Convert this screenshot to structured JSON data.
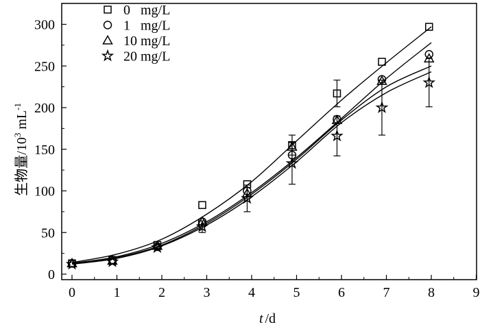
{
  "chart_data": {
    "type": "scatter",
    "xlabel": {
      "var": "t",
      "unit": "/d"
    },
    "ylabel": {
      "prefix": "生物量/10",
      "sup1": "3",
      "mid": " mL",
      "sup2": "-1"
    },
    "xlim": [
      0,
      9
    ],
    "ylim": [
      0,
      325
    ],
    "xticks": [
      "0",
      "1",
      "2",
      "3",
      "4",
      "5",
      "6",
      "7",
      "8",
      "9"
    ],
    "yticks": [
      "0",
      "50",
      "100",
      "150",
      "200",
      "250",
      "300"
    ],
    "grid": false,
    "legend_position": "top-left",
    "series": [
      {
        "name": "0   mg/L",
        "marker": "square",
        "x": [
          0,
          0.9,
          1.9,
          2.9,
          3.9,
          4.9,
          5.9,
          6.9,
          7.95
        ],
        "y": [
          13,
          17,
          35,
          83,
          108,
          155,
          217,
          255,
          297
        ],
        "err": [
          0,
          0,
          0,
          0,
          0,
          12,
          16,
          0,
          0
        ],
        "fit": [
          14,
          24,
          42,
          72,
          111,
          160,
          209,
          254,
          297
        ]
      },
      {
        "name": "1   mg/L",
        "marker": "circle",
        "x": [
          0,
          0.9,
          1.9,
          2.9,
          3.9,
          4.9,
          5.9,
          6.9,
          7.95
        ],
        "y": [
          13,
          17,
          33,
          63,
          100,
          143,
          186,
          234,
          264
        ],
        "err": [
          0,
          0,
          0,
          0,
          0,
          0,
          0,
          0,
          0
        ],
        "fit": [
          13,
          21,
          37,
          63,
          98,
          140,
          187,
          235,
          278
        ]
      },
      {
        "name": "10 mg/L",
        "marker": "triangle",
        "x": [
          0,
          0.9,
          1.9,
          2.9,
          3.9,
          4.9,
          5.9,
          6.9,
          7.95
        ],
        "y": [
          13,
          16,
          34,
          63,
          97,
          153,
          185,
          232,
          259
        ],
        "err": [
          0,
          0,
          0,
          0,
          0,
          0,
          0,
          0,
          0
        ],
        "fit": [
          13,
          20,
          35,
          61,
          96,
          138,
          185,
          225,
          250
        ]
      },
      {
        "name": "20 mg/L",
        "marker": "star",
        "x": [
          0,
          0.9,
          1.9,
          2.9,
          3.9,
          4.9,
          5.9,
          6.9,
          7.95
        ],
        "y": [
          12,
          15,
          32,
          57,
          91,
          133,
          166,
          200,
          230
        ],
        "err": [
          0,
          0,
          0,
          7,
          16,
          25,
          24,
          33,
          29
        ],
        "fit": [
          12,
          19,
          34,
          59,
          93,
          135,
          182,
          218,
          243
        ]
      }
    ]
  }
}
